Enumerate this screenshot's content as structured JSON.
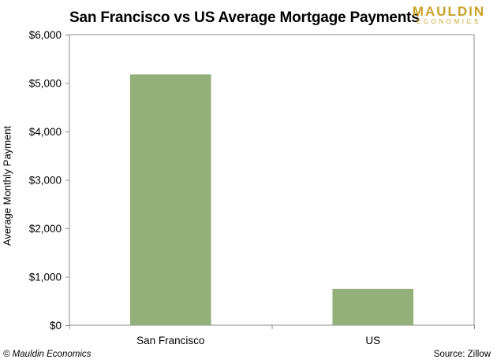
{
  "chart_data": {
    "type": "bar",
    "title": "San Francisco vs US Average Mortgage Payments",
    "xlabel": "",
    "ylabel": "Average Monthly Payment",
    "categories": [
      "San Francisco",
      "US"
    ],
    "values": [
      5180,
      750
    ],
    "ylim": [
      0,
      6000
    ],
    "yticks": [
      0,
      1000,
      2000,
      3000,
      4000,
      5000,
      6000
    ],
    "ytick_labels": [
      "$0",
      "$1,000",
      "$2,000",
      "$3,000",
      "$4,000",
      "$5,000",
      "$6,000"
    ],
    "grid": false,
    "legend": "none",
    "bar_color": "#94b07a"
  },
  "logo": {
    "main": "MAULDIN",
    "sub": "ECONOMICS"
  },
  "footer": {
    "copyright": "© Mauldin Economics",
    "source": "Source: Zillow"
  }
}
